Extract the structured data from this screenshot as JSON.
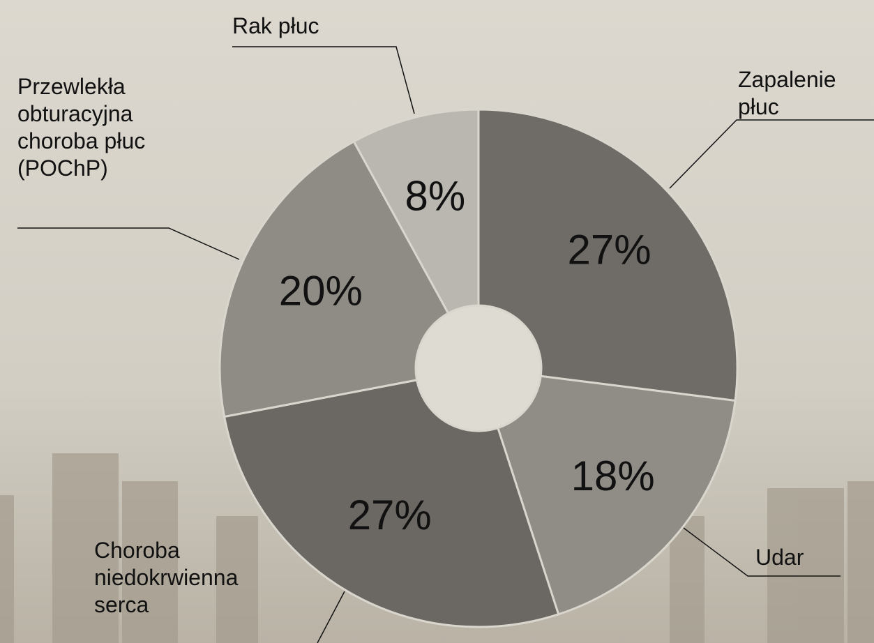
{
  "chart_data": {
    "type": "pie",
    "categories": [
      "Zapalenie płuc",
      "Udar",
      "Choroba niedokrwienna serca",
      "Przewlekła obturacyjna choroba płuc (POChP)",
      "Rak płuc"
    ],
    "values": [
      27,
      18,
      27,
      20,
      8
    ],
    "value_labels": [
      "27%",
      "18%",
      "27%",
      "20%",
      "8%"
    ],
    "colors": [
      "#6f6c67",
      "#908d87",
      "#6b6863",
      "#8f8c86",
      "#bab7b0"
    ]
  }
}
